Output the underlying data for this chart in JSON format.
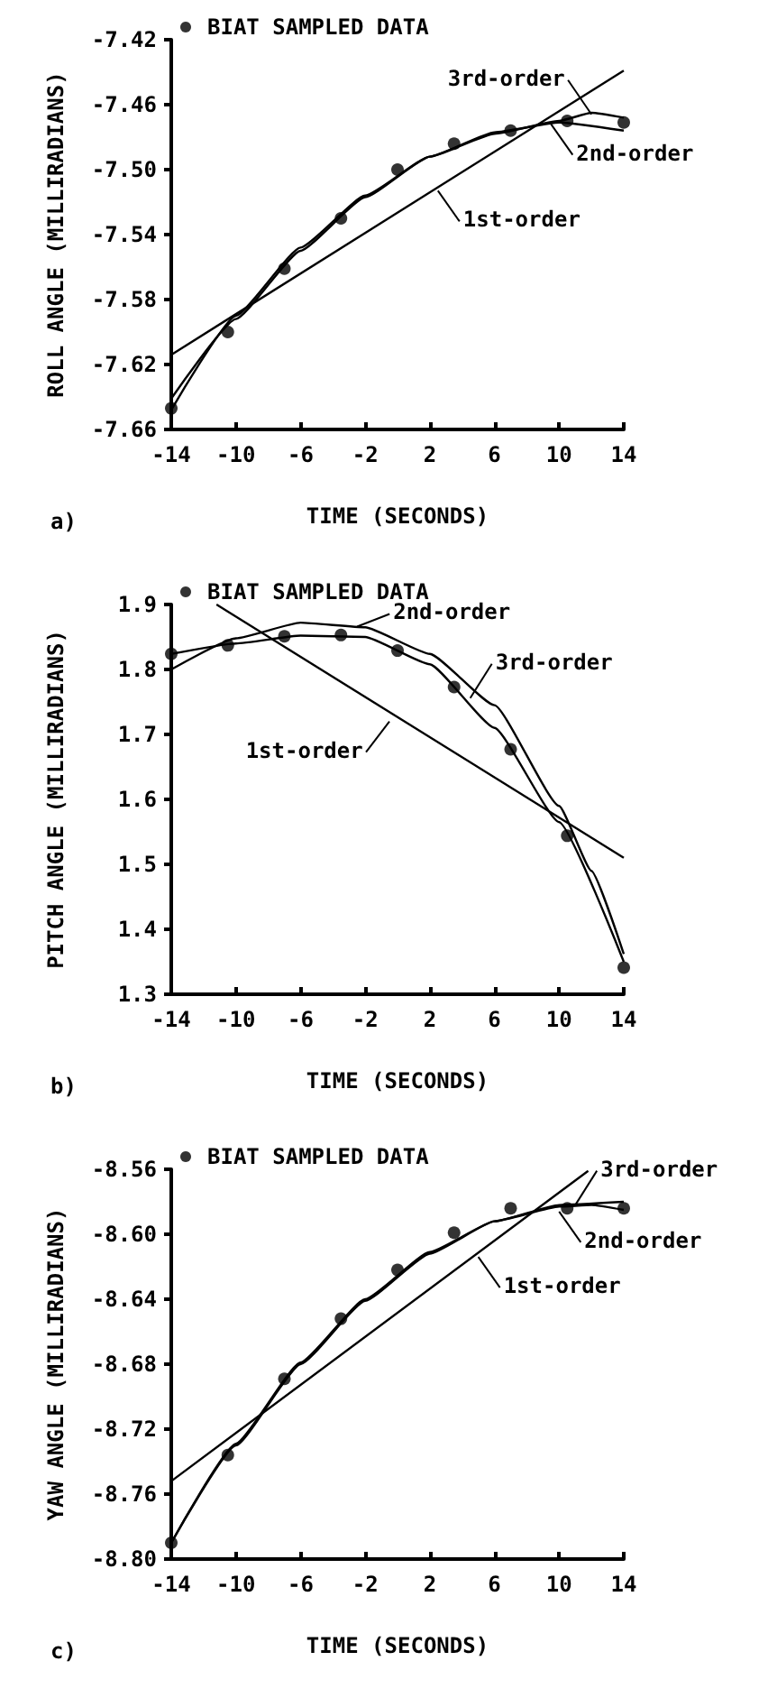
{
  "chart_data": [
    {
      "type": "line",
      "xlabel": "TIME (SECONDS)",
      "ylabel": "ROLL ANGLE (MILLIRADIANS)",
      "xlim": [
        -14,
        14
      ],
      "xticks": [
        -14,
        -10,
        -6,
        -2,
        2,
        6,
        10,
        14
      ],
      "ylim": [
        -7.66,
        -7.42
      ],
      "yticks": [
        -7.66,
        -7.62,
        -7.58,
        -7.54,
        {
          "value": -7.5,
          "label": "-7.50"
        },
        -7.46,
        -7.42
      ],
      "grid": false,
      "legend": "top left",
      "line_style": "solid",
      "series": [
        {
          "name": "BIAT SAMPLED DATA",
          "type": "scatter",
          "marker": "circle",
          "color": "#000000",
          "x": [
            -14,
            -10.5,
            -7,
            -3.5,
            0,
            3.5,
            7,
            10.5,
            14
          ],
          "values": [
            -7.647,
            -7.6,
            -7.561,
            -7.53,
            -7.5,
            -7.484,
            -7.476,
            -7.47,
            -7.471
          ]
        },
        {
          "type": "line",
          "color": "#000000",
          "x": [
            -14,
            14
          ],
          "values": [
            -7.614,
            -7.439
          ]
        },
        {
          "type": "line",
          "color": "#000000",
          "x": [
            -14,
            -10,
            -6,
            -2,
            2,
            6,
            10,
            14
          ],
          "values": [
            -7.641,
            -7.592,
            -7.55,
            -7.517,
            -7.492,
            -7.477,
            -7.471,
            -7.476
          ]
        },
        {
          "type": "line",
          "color": "#000000",
          "x": [
            -14,
            -10,
            -6,
            -2,
            2,
            6,
            10,
            12,
            14
          ],
          "values": [
            -7.648,
            -7.59,
            -7.548,
            -7.516,
            -7.492,
            -7.478,
            -7.47,
            -7.465,
            -7.468
          ]
        }
      ],
      "annotations": [
        {
          "text": "1st-order",
          "x": 2.5,
          "y": -7.513
        },
        {
          "text": "2nd-order",
          "x": 9.5,
          "y": -7.472
        },
        {
          "text": "3rd-order",
          "x": 12,
          "y": -7.466
        },
        "a)"
      ]
    },
    {
      "type": "line",
      "xlabel": "TIME (SECONDS)",
      "ylabel": "PITCH ANGLE (MILLIRADIANS)",
      "xlim": [
        -14,
        14
      ],
      "xticks": [
        -14,
        -10,
        -6,
        -2,
        2,
        6,
        10,
        14
      ],
      "ylim": [
        1.3,
        1.9
      ],
      "yticks": [
        1.3,
        1.4,
        1.5,
        1.6,
        1.7,
        1.8,
        1.9
      ],
      "grid": false,
      "legend": "top left",
      "line_style": "solid",
      "series": [
        {
          "name": "BIAT SAMPLED DATA",
          "type": "scatter",
          "marker": "circle",
          "color": "#000000",
          "x": [
            -14,
            -10.5,
            -7,
            -3.5,
            0,
            3.5,
            7,
            10.5,
            14
          ],
          "values": [
            1.824,
            1.837,
            1.851,
            1.853,
            1.829,
            1.773,
            1.677,
            1.544,
            1.341
          ]
        },
        {
          "type": "line",
          "color": "#000000",
          "x": [
            -11.2,
            14
          ],
          "values": [
            1.9,
            1.51
          ]
        },
        {
          "type": "line",
          "color": "#000000",
          "x": [
            -14,
            -10,
            -6,
            -2,
            2,
            6,
            10,
            12,
            14
          ],
          "values": [
            1.8,
            1.848,
            1.872,
            1.865,
            1.824,
            1.745,
            1.59,
            1.49,
            1.362
          ]
        },
        {
          "type": "line",
          "color": "#000000",
          "x": [
            -14,
            -10,
            -6,
            -2,
            2,
            6,
            10,
            14
          ],
          "values": [
            1.824,
            1.84,
            1.852,
            1.85,
            1.808,
            1.71,
            1.565,
            1.35
          ]
        }
      ],
      "annotations": [
        {
          "text": "1st-order",
          "x": -0.5,
          "y": 1.72
        },
        {
          "text": "2nd-order",
          "x": -2.5,
          "y": 1.866
        },
        {
          "text": "3rd-order",
          "x": 4.5,
          "y": 1.756
        },
        "b)"
      ]
    },
    {
      "type": "line",
      "xlabel": "TIME (SECONDS)",
      "ylabel": "YAW ANGLE (MILLIRADIANS)",
      "xlim": [
        -14,
        14
      ],
      "xticks": [
        -14,
        -10,
        -6,
        -2,
        2,
        6,
        10,
        14
      ],
      "ylim": [
        -8.8,
        -8.56
      ],
      "yticks": [
        {
          "value": -8.8,
          "label": "-8.80"
        },
        -8.76,
        -8.72,
        -8.68,
        -8.64,
        {
          "value": -8.6,
          "label": "-8.60"
        },
        -8.56
      ],
      "grid": false,
      "legend": "top left",
      "line_style": "solid",
      "series": [
        {
          "name": "BIAT SAMPLED DATA",
          "type": "scatter",
          "marker": "circle",
          "color": "#000000",
          "x": [
            -14,
            -10.5,
            -7,
            -3.5,
            0,
            3.5,
            7,
            10.5,
            14
          ],
          "values": [
            -8.79,
            -8.736,
            -8.689,
            -8.652,
            -8.622,
            -8.599,
            -8.584,
            -8.584,
            -8.584
          ]
        },
        {
          "type": "line",
          "color": "#000000",
          "x": [
            -14,
            11.8
          ],
          "values": [
            -8.752,
            -8.561
          ]
        },
        {
          "type": "line",
          "color": "#000000",
          "x": [
            -14,
            -10,
            -6,
            -2,
            2,
            6,
            10,
            14
          ],
          "values": [
            -8.79,
            -8.729,
            -8.679,
            -8.64,
            -8.611,
            -8.592,
            -8.582,
            -8.58
          ]
        },
        {
          "type": "line",
          "color": "#000000",
          "x": [
            -14,
            -10,
            -6,
            -2,
            2,
            6,
            10,
            12,
            14
          ],
          "values": [
            -8.79,
            -8.73,
            -8.68,
            -8.641,
            -8.612,
            -8.592,
            -8.583,
            -8.582,
            -8.585
          ]
        }
      ],
      "annotations": [
        {
          "text": "1st-order",
          "x": 5,
          "y": -8.614
        },
        {
          "text": "2nd-order",
          "x": 10,
          "y": -8.586
        },
        {
          "text": "3rd-order",
          "x": 11,
          "y": -8.582
        },
        "c)"
      ]
    }
  ]
}
